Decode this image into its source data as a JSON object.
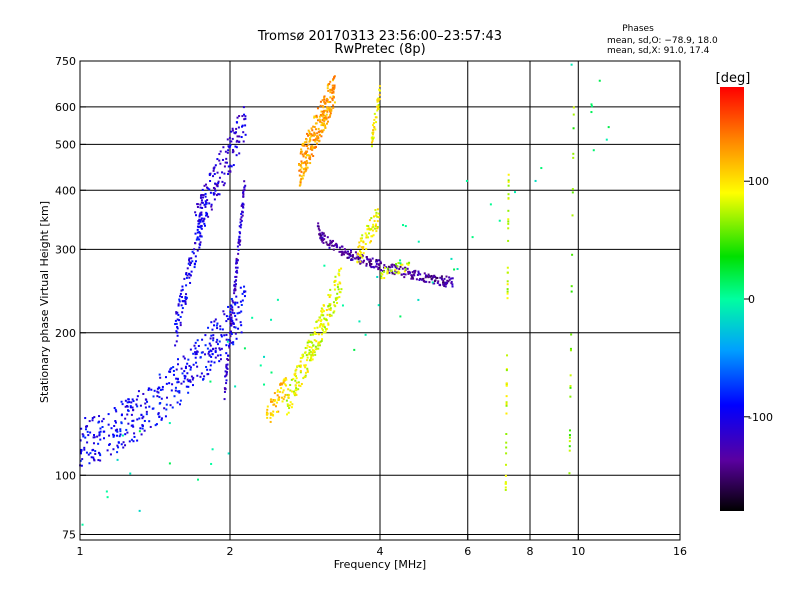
{
  "chart_data": {
    "type": "scatter",
    "title": "Tromsø 20170313 23:56:00–23:57:43",
    "subtitle": "RwPretec (8p)",
    "phase_info": {
      "heading": "Phases",
      "line_o": "mean, sd,O: −78.9, 18.0",
      "line_x": "mean, sd,X:  91.0, 17.4"
    },
    "xlabel": "Frequency [MHz]",
    "ylabel": "Stationary phase Virtual Height [km]",
    "x_scale": "log",
    "y_scale": "log",
    "xlim": [
      1,
      16
    ],
    "ylim": [
      73,
      750
    ],
    "x_ticks": [
      1,
      2,
      4,
      6,
      8,
      10,
      16
    ],
    "x_tick_labels": [
      "1",
      "2",
      "4",
      "6",
      "8",
      "10",
      "16"
    ],
    "y_ticks": [
      75,
      100,
      200,
      300,
      400,
      500,
      600,
      750
    ],
    "y_tick_labels": [
      "75",
      "100",
      "200",
      "300",
      "400",
      "500",
      "600",
      "750"
    ],
    "grid": true,
    "colorbar": {
      "label": "[deg]",
      "range": [
        -180,
        180
      ],
      "ticks": [
        100,
        0,
        -100
      ],
      "tick_labels": [
        "100",
        "0",
        "-100"
      ]
    },
    "clusters": [
      {
        "name": "low-frequency rising trace",
        "phase": -95,
        "n": 420,
        "fmin": 1.0,
        "fmax": 2.15,
        "h0": 118,
        "h1": 230,
        "curve": 1.6,
        "spread": 0.12
      },
      {
        "name": "upper band near 2 MHz",
        "phase": -110,
        "n": 150,
        "fmin": 1.7,
        "fmax": 2.15,
        "h0": 340,
        "h1": 560,
        "curve": 1,
        "spread": 0.1
      },
      {
        "name": "vertical band 2.0-2.15 MHz",
        "phase": -115,
        "n": 120,
        "fmin": 1.95,
        "fmax": 2.15,
        "h0": 150,
        "h1": 430,
        "curve": 1,
        "spread": 0.05
      },
      {
        "name": "mid band 1.6-1.8 MHz",
        "phase": -100,
        "n": 120,
        "fmin": 1.55,
        "fmax": 1.8,
        "h0": 200,
        "h1": 380,
        "curve": 1,
        "spread": 0.08
      },
      {
        "name": "orange low trace",
        "phase": 110,
        "n": 60,
        "fmin": 2.35,
        "fmax": 2.6,
        "h0": 130,
        "h1": 155,
        "curve": 1,
        "spread": 0.06
      },
      {
        "name": "yellow rising trace",
        "phase": 85,
        "n": 220,
        "fmin": 2.6,
        "fmax": 3.35,
        "h0": 140,
        "h1": 260,
        "curve": 1,
        "spread": 0.08
      },
      {
        "name": "orange high cluster",
        "phase": 125,
        "n": 260,
        "fmin": 2.75,
        "fmax": 3.25,
        "h0": 440,
        "h1": 660,
        "curve": 1,
        "spread": 0.09
      },
      {
        "name": "dark blue descending trace",
        "phase": -135,
        "n": 260,
        "fmin": 3.0,
        "fmax": 5.6,
        "h0": 340,
        "h1": 255,
        "curve": 0.45,
        "spread": 0.025
      },
      {
        "name": "yellow near 4 MHz",
        "phase": 90,
        "n": 70,
        "fmin": 3.6,
        "fmax": 4.0,
        "h0": 290,
        "h1": 360,
        "curve": 1,
        "spread": 0.06
      },
      {
        "name": "yellow high near 4 MHz",
        "phase": 95,
        "n": 40,
        "fmin": 3.85,
        "fmax": 4.0,
        "h0": 510,
        "h1": 640,
        "curve": 1,
        "spread": 0.05
      },
      {
        "name": "yellow 4-4.5 MHz",
        "phase": 80,
        "n": 30,
        "fmin": 4.0,
        "fmax": 4.6,
        "h0": 265,
        "h1": 280,
        "curve": 1,
        "spread": 0.03
      },
      {
        "name": "vertical yellow line 7.2 MHz",
        "phase": 80,
        "n": 45,
        "fmin": 7.15,
        "fmax": 7.25,
        "h0": 90,
        "h1": 430,
        "curve": 1,
        "spread": 0.01
      },
      {
        "name": "scattered points 9.7 MHz",
        "phase": 60,
        "n": 25,
        "fmin": 9.6,
        "fmax": 9.8,
        "h0": 100,
        "h1": 620,
        "curve": 1,
        "spread": 0.01
      },
      {
        "name": "sparse background",
        "phase": 0,
        "n": 60,
        "fmin": 1.0,
        "fmax": 12.0,
        "h0": 80,
        "h1": 700,
        "curve": 1,
        "spread": 0.3
      }
    ]
  }
}
